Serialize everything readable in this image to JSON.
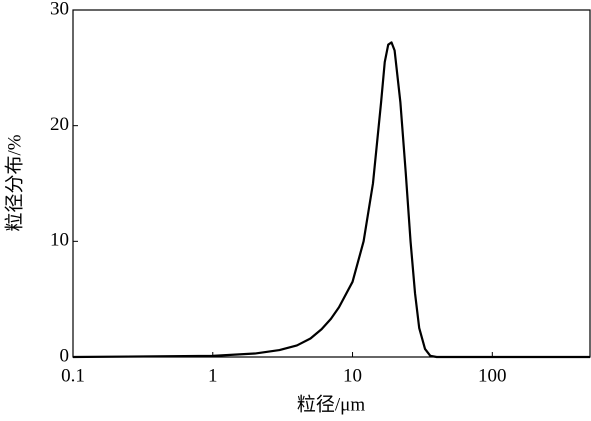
{
  "chart_data": {
    "type": "line",
    "xlabel": "粒径/μm",
    "ylabel": "粒径分布/%",
    "log_x": true,
    "x": [
      0.1,
      1,
      2,
      3,
      4,
      5,
      6,
      7,
      8,
      10,
      12,
      14,
      16,
      17,
      18,
      19,
      20,
      22,
      24,
      26,
      28,
      30,
      33,
      36,
      40,
      100,
      500
    ],
    "series": [
      {
        "name": "粒径分布",
        "color": "#000000",
        "values": [
          0,
          0.1,
          0.3,
          0.6,
          1.0,
          1.6,
          2.4,
          3.3,
          4.3,
          6.5,
          10,
          15,
          22,
          25.5,
          27,
          27.2,
          26.5,
          22,
          16,
          10,
          5.5,
          2.5,
          0.7,
          0.1,
          0,
          0,
          0
        ]
      }
    ],
    "xlim": [
      0.1,
      500
    ],
    "xticks": [
      0.1,
      1,
      10,
      100
    ],
    "ylim": [
      0,
      30
    ],
    "yticks": [
      0,
      10,
      20,
      30
    ]
  }
}
